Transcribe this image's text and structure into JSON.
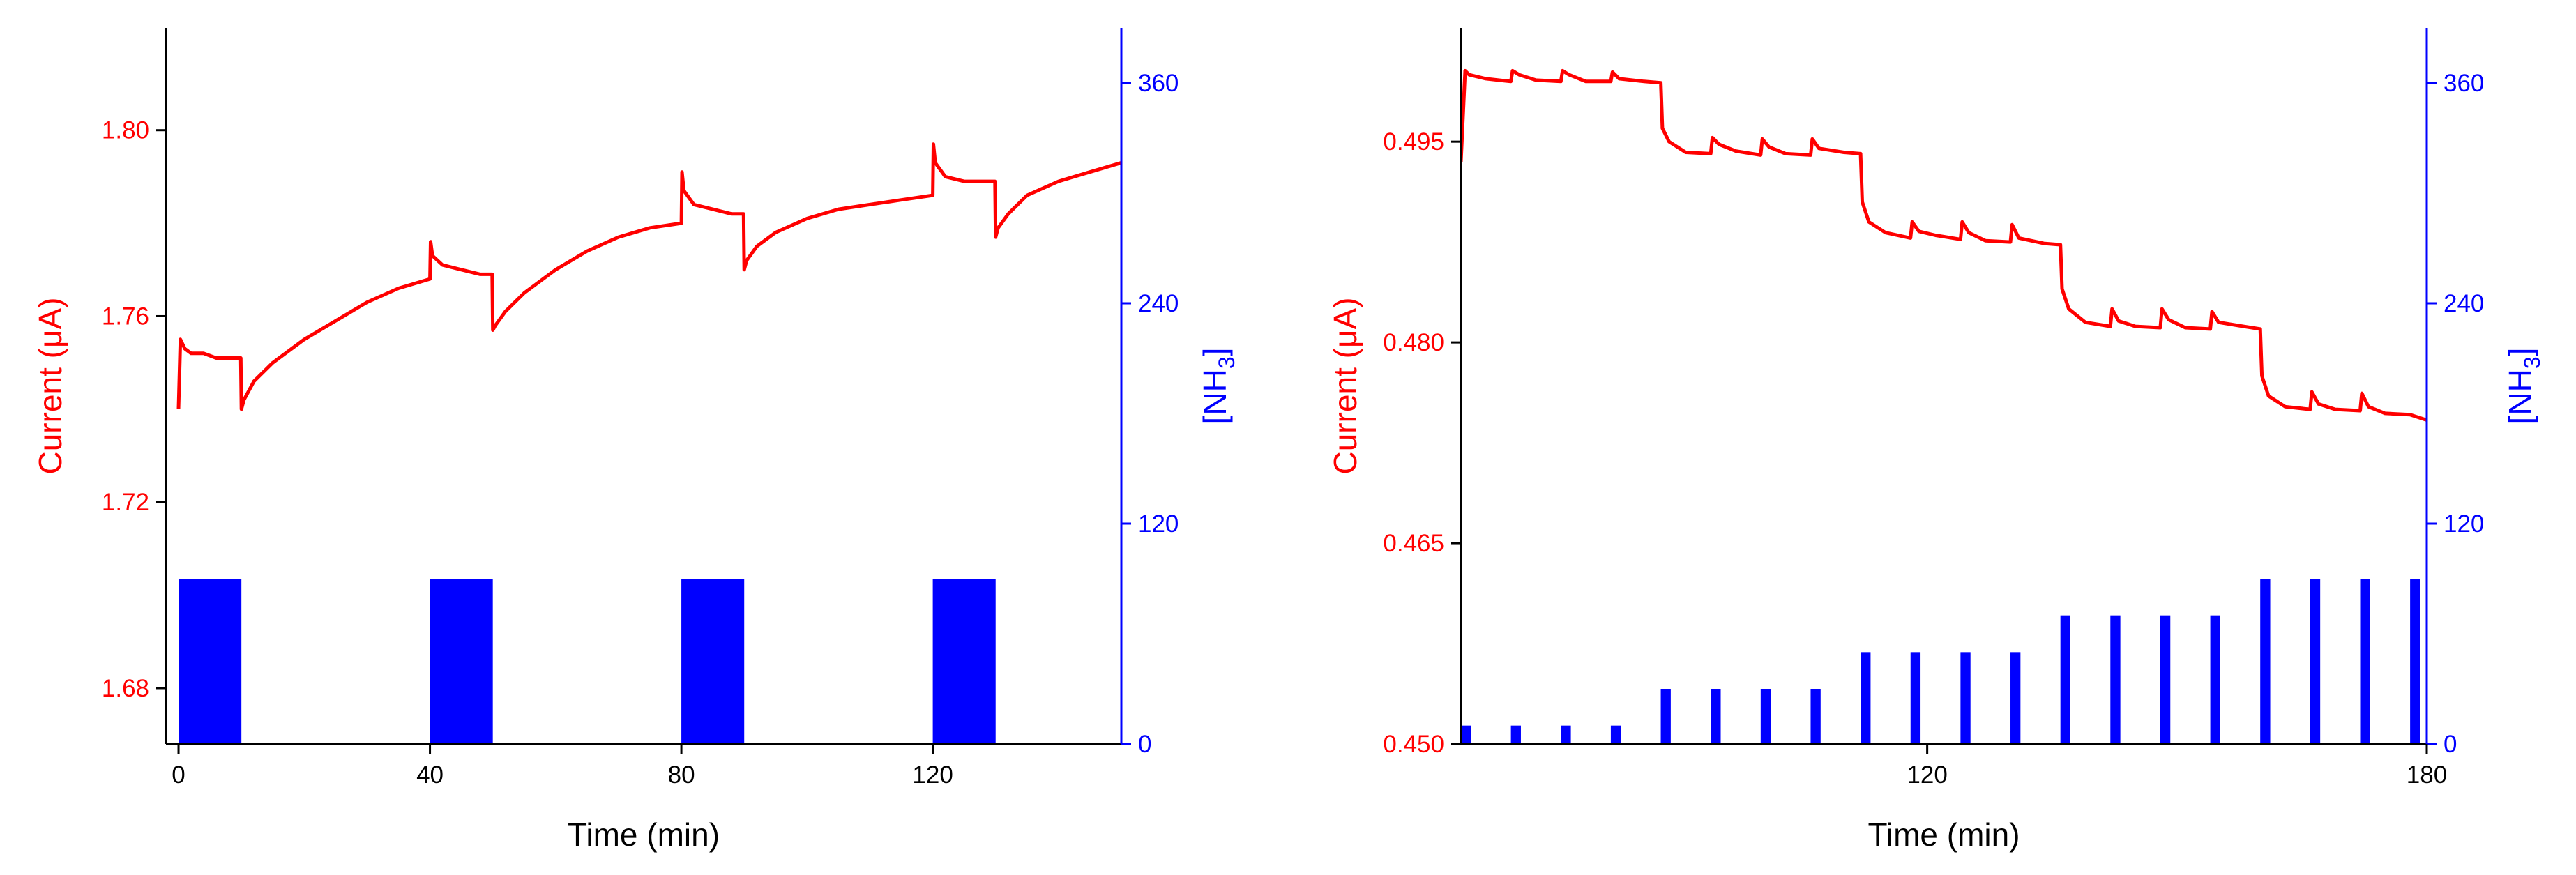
{
  "colors": {
    "current": "#ff0000",
    "nh3": "#0000ff",
    "frame": "#000000"
  },
  "chart_data": [
    {
      "type": "line",
      "xlabel": "Time (min)",
      "ylabel": "Current (μA)",
      "y2label": "[NH3]",
      "y2label_main": "[NH",
      "y2label_sub": "3",
      "y2label_end": "]",
      "xlim": [
        -2,
        150
      ],
      "ylim": [
        1.668,
        1.822
      ],
      "y2lim": [
        0,
        390
      ],
      "xticks": [
        0,
        40,
        80,
        120
      ],
      "xtick_labels": [
        "0",
        "40",
        "80",
        "120"
      ],
      "yticks": [
        1.68,
        1.72,
        1.76,
        1.8
      ],
      "ytick_labels": [
        "1.68",
        "1.72",
        "1.76",
        "1.80"
      ],
      "y2ticks": [
        0,
        120,
        240,
        360
      ],
      "y2tick_labels": [
        "0",
        "120",
        "240",
        "360"
      ],
      "series": [
        {
          "axis": "left",
          "kind": "line",
          "x": [
            0.0,
            0.3,
            1.0,
            2.0,
            4.0,
            6.0,
            8.0,
            9.9,
            10.0,
            10.4,
            12,
            15,
            20,
            25,
            30,
            35,
            40,
            40.1,
            40.4,
            42,
            45,
            48,
            49.9,
            50.0,
            50.4,
            52,
            55,
            60,
            65,
            70,
            75,
            80,
            80.1,
            80.4,
            82,
            85,
            88,
            89.9,
            90.0,
            90.4,
            92,
            95,
            100,
            105,
            110,
            115,
            120,
            120.1,
            120.4,
            122,
            125,
            128,
            129.9,
            130.0,
            130.4,
            132,
            135,
            140,
            145,
            150
          ],
          "values": [
            1.74,
            1.755,
            1.753,
            1.752,
            1.752,
            1.751,
            1.751,
            1.751,
            1.74,
            1.742,
            1.746,
            1.75,
            1.755,
            1.759,
            1.763,
            1.766,
            1.768,
            1.776,
            1.773,
            1.771,
            1.77,
            1.769,
            1.769,
            1.757,
            1.758,
            1.761,
            1.765,
            1.77,
            1.774,
            1.777,
            1.779,
            1.78,
            1.791,
            1.787,
            1.784,
            1.783,
            1.782,
            1.782,
            1.77,
            1.772,
            1.775,
            1.778,
            1.781,
            1.783,
            1.784,
            1.785,
            1.786,
            1.797,
            1.793,
            1.79,
            1.789,
            1.789,
            1.789,
            1.777,
            1.779,
            1.782,
            1.786,
            1.789,
            1.791,
            1.793
          ]
        },
        {
          "axis": "right",
          "kind": "pulse",
          "blocks": [
            {
              "start": 0,
              "end": 10,
              "value": 90
            },
            {
              "start": 40,
              "end": 50,
              "value": 90
            },
            {
              "start": 80,
              "end": 90,
              "value": 90
            },
            {
              "start": 120,
              "end": 130,
              "value": 90
            }
          ]
        }
      ]
    },
    {
      "type": "line",
      "xlabel": "Time (min)",
      "ylabel": "Current (μA)",
      "y2label": "[NH3]",
      "y2label_main": "[NH",
      "y2label_sub": "3",
      "y2label_end": "]",
      "xlim": [
        64,
        180
      ],
      "ylim": [
        0.45,
        0.5035
      ],
      "y2lim": [
        0,
        390
      ],
      "xticks": [
        120,
        180
      ],
      "xtick_labels": [
        "120",
        "180"
      ],
      "yticks": [
        0.45,
        0.465,
        0.48,
        0.495
      ],
      "ytick_labels": [
        "0.450",
        "0.465",
        "0.480",
        "0.495"
      ],
      "y2ticks": [
        0,
        120,
        240,
        360
      ],
      "y2tick_labels": [
        "0",
        "120",
        "240",
        "360"
      ],
      "series": [
        {
          "axis": "left",
          "kind": "line",
          "x": [
            64.0,
            64.5,
            65,
            67,
            70,
            70.2,
            71,
            73,
            76,
            76.2,
            77,
            79,
            82,
            82.2,
            83,
            86,
            88,
            88.2,
            89,
            91,
            94,
            94.2,
            95,
            97,
            100,
            100.2,
            101,
            103,
            106,
            106.2,
            107,
            110,
            112,
            112.2,
            113,
            115,
            118,
            118.2,
            119,
            121,
            124,
            124.2,
            125,
            127,
            130,
            130.2,
            131,
            134,
            136,
            136.2,
            137,
            139,
            142,
            142.2,
            143,
            145,
            148,
            148.2,
            149,
            151,
            154,
            154.2,
            155,
            158,
            160,
            160.2,
            161,
            163,
            166,
            166.2,
            167,
            169,
            172,
            172.2,
            173,
            175,
            178,
            180
          ],
          "values": [
            0.4935,
            0.5003,
            0.5,
            0.4997,
            0.4995,
            0.5003,
            0.5,
            0.4996,
            0.4995,
            0.5003,
            0.5,
            0.4995,
            0.4995,
            0.5002,
            0.4997,
            0.4995,
            0.4994,
            0.496,
            0.495,
            0.4942,
            0.4941,
            0.4953,
            0.4948,
            0.4943,
            0.494,
            0.4952,
            0.4946,
            0.4941,
            0.494,
            0.4952,
            0.4945,
            0.4942,
            0.4941,
            0.4905,
            0.489,
            0.4882,
            0.4878,
            0.489,
            0.4883,
            0.488,
            0.4877,
            0.489,
            0.4882,
            0.4876,
            0.4875,
            0.4888,
            0.4878,
            0.4874,
            0.4873,
            0.484,
            0.4825,
            0.4815,
            0.4812,
            0.4825,
            0.4816,
            0.4812,
            0.4811,
            0.4825,
            0.4817,
            0.4811,
            0.481,
            0.4823,
            0.4815,
            0.4812,
            0.481,
            0.4775,
            0.476,
            0.4752,
            0.475,
            0.4763,
            0.4754,
            0.475,
            0.4749,
            0.4762,
            0.4752,
            0.4747,
            0.4746,
            0.4742
          ]
        },
        {
          "axis": "right",
          "kind": "pulse",
          "blocks": [
            {
              "start": 64.0,
              "end": 65.2,
              "value": 10
            },
            {
              "start": 70.0,
              "end": 71.2,
              "value": 10
            },
            {
              "start": 76.0,
              "end": 77.2,
              "value": 10
            },
            {
              "start": 82.0,
              "end": 83.2,
              "value": 10
            },
            {
              "start": 88.0,
              "end": 89.2,
              "value": 30
            },
            {
              "start": 94.0,
              "end": 95.2,
              "value": 30
            },
            {
              "start": 100.0,
              "end": 101.2,
              "value": 30
            },
            {
              "start": 106.0,
              "end": 107.2,
              "value": 30
            },
            {
              "start": 112.0,
              "end": 113.2,
              "value": 50
            },
            {
              "start": 118.0,
              "end": 119.2,
              "value": 50
            },
            {
              "start": 124.0,
              "end": 125.2,
              "value": 50
            },
            {
              "start": 130.0,
              "end": 131.2,
              "value": 50
            },
            {
              "start": 136.0,
              "end": 137.2,
              "value": 70
            },
            {
              "start": 142.0,
              "end": 143.2,
              "value": 70
            },
            {
              "start": 148.0,
              "end": 149.2,
              "value": 70
            },
            {
              "start": 154.0,
              "end": 155.2,
              "value": 70
            },
            {
              "start": 160.0,
              "end": 161.2,
              "value": 90
            },
            {
              "start": 166.0,
              "end": 167.2,
              "value": 90
            },
            {
              "start": 172.0,
              "end": 173.2,
              "value": 90
            },
            {
              "start": 178.0,
              "end": 179.2,
              "value": 90
            }
          ]
        }
      ]
    }
  ]
}
